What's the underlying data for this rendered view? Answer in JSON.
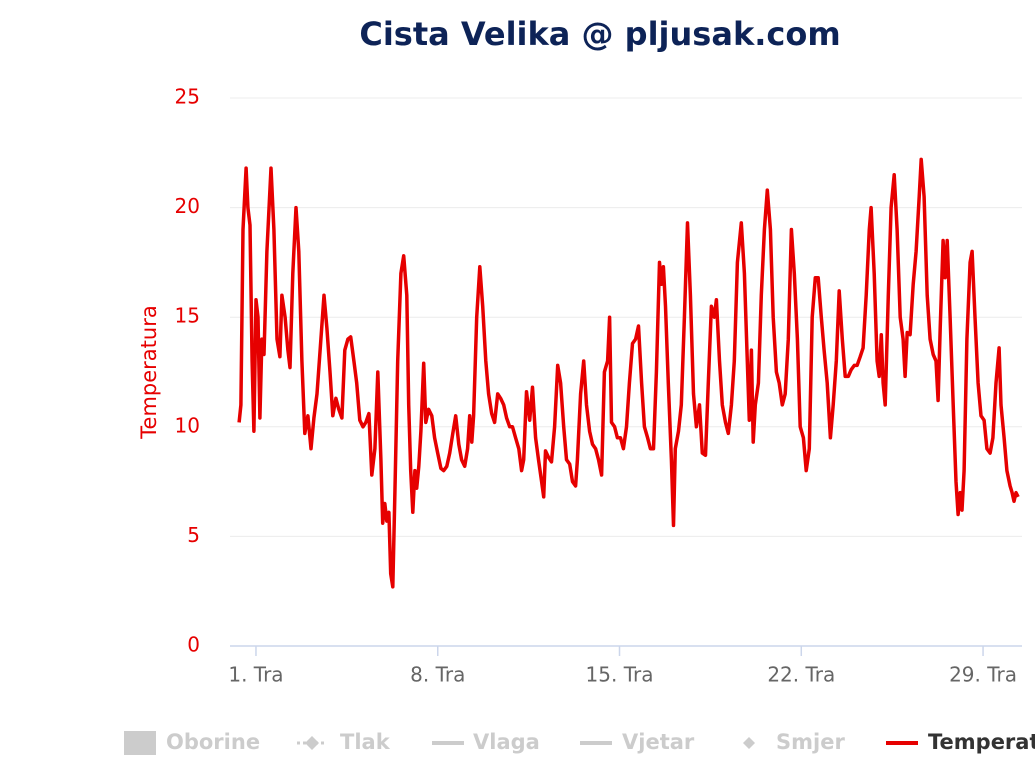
{
  "chart_data": {
    "type": "line",
    "title": "Cista Velika @ pljusak.com",
    "y_label": "Temperatura",
    "xlim": [
      0,
      30.5
    ],
    "xticks": [
      {
        "value": 1,
        "label": "1. Tra"
      },
      {
        "value": 8,
        "label": "8. Tra"
      },
      {
        "value": 15,
        "label": "15. Tra"
      },
      {
        "value": 22,
        "label": "22. Tra"
      },
      {
        "value": 29,
        "label": "29. Tra"
      }
    ],
    "ylim": [
      0,
      25
    ],
    "yticks": [
      0,
      5,
      10,
      15,
      20,
      25
    ],
    "grid": true,
    "series": [
      {
        "name": "Temperatura",
        "color": "#e60000",
        "x": [
          0.35,
          0.42,
          0.5,
          0.62,
          0.69,
          0.77,
          0.85,
          0.92,
          1.0,
          1.08,
          1.15,
          1.23,
          1.31,
          1.42,
          1.58,
          1.69,
          1.81,
          1.92,
          2.0,
          2.12,
          2.23,
          2.31,
          2.42,
          2.54,
          2.65,
          2.77,
          2.88,
          3.0,
          3.12,
          3.23,
          3.35,
          3.5,
          3.62,
          3.73,
          3.85,
          3.96,
          4.08,
          4.19,
          4.31,
          4.42,
          4.54,
          4.65,
          4.77,
          4.88,
          5.0,
          5.12,
          5.23,
          5.35,
          5.46,
          5.58,
          5.69,
          5.81,
          5.88,
          5.96,
          6.04,
          6.12,
          6.19,
          6.27,
          6.35,
          6.46,
          6.58,
          6.69,
          6.81,
          6.88,
          6.96,
          7.04,
          7.12,
          7.19,
          7.27,
          7.35,
          7.46,
          7.54,
          7.65,
          7.77,
          7.88,
          8.0,
          8.12,
          8.23,
          8.35,
          8.46,
          8.58,
          8.69,
          8.81,
          8.92,
          9.04,
          9.15,
          9.23,
          9.31,
          9.38,
          9.5,
          9.62,
          9.73,
          9.85,
          9.96,
          10.08,
          10.19,
          10.31,
          10.42,
          10.54,
          10.65,
          10.77,
          10.88,
          11.0,
          11.12,
          11.23,
          11.31,
          11.42,
          11.54,
          11.65,
          11.77,
          11.88,
          12.0,
          12.08,
          12.15,
          12.27,
          12.38,
          12.5,
          12.62,
          12.73,
          12.85,
          12.96,
          13.08,
          13.19,
          13.31,
          13.38,
          13.5,
          13.62,
          13.73,
          13.85,
          13.96,
          14.08,
          14.19,
          14.31,
          14.42,
          14.54,
          14.62,
          14.69,
          14.81,
          14.92,
          15.04,
          15.15,
          15.27,
          15.38,
          15.5,
          15.62,
          15.73,
          15.85,
          15.96,
          16.08,
          16.19,
          16.31,
          16.42,
          16.54,
          16.62,
          16.69,
          16.77,
          16.88,
          17.0,
          17.08,
          17.15,
          17.27,
          17.38,
          17.5,
          17.62,
          17.73,
          17.85,
          17.96,
          18.08,
          18.19,
          18.31,
          18.42,
          18.54,
          18.65,
          18.73,
          18.85,
          18.96,
          19.08,
          19.19,
          19.31,
          19.42,
          19.54,
          19.69,
          19.81,
          19.92,
          20.0,
          20.08,
          20.15,
          20.23,
          20.35,
          20.46,
          20.58,
          20.69,
          20.81,
          20.92,
          21.04,
          21.15,
          21.27,
          21.38,
          21.5,
          21.62,
          21.73,
          21.85,
          21.96,
          22.08,
          22.19,
          22.31,
          22.42,
          22.54,
          22.65,
          22.77,
          22.88,
          23.0,
          23.12,
          23.23,
          23.35,
          23.46,
          23.58,
          23.69,
          23.81,
          23.92,
          24.04,
          24.15,
          24.27,
          24.38,
          24.5,
          24.62,
          24.69,
          24.81,
          24.92,
          25.0,
          25.08,
          25.15,
          25.23,
          25.35,
          25.46,
          25.58,
          25.69,
          25.81,
          25.92,
          26.0,
          26.08,
          26.19,
          26.31,
          26.42,
          26.54,
          26.62,
          26.73,
          26.85,
          26.96,
          27.08,
          27.19,
          27.27,
          27.35,
          27.46,
          27.54,
          27.62,
          27.73,
          27.85,
          27.96,
          28.04,
          28.12,
          28.19,
          28.27,
          28.38,
          28.5,
          28.58,
          28.69,
          28.81,
          28.92,
          29.04,
          29.15,
          29.27,
          29.38,
          29.5,
          29.62,
          29.69,
          29.81,
          29.92,
          30.04,
          30.12,
          30.19,
          30.27,
          30.35
        ],
        "values": [
          10.2,
          11,
          19,
          21.8,
          20,
          19.2,
          13,
          9.8,
          15.8,
          15,
          10.4,
          14,
          13.3,
          18,
          21.8,
          19,
          14,
          13.2,
          16,
          15,
          13.5,
          12.7,
          17,
          20,
          18,
          13,
          9.7,
          10.5,
          9,
          10.4,
          11.5,
          14,
          16,
          14.5,
          12.5,
          10.5,
          11.3,
          10.8,
          10.4,
          13.5,
          14,
          14.1,
          13,
          12,
          10.3,
          10,
          10.2,
          10.6,
          7.8,
          9,
          12.5,
          8.5,
          5.6,
          6.5,
          5.7,
          6.1,
          3.3,
          2.7,
          7,
          13,
          17,
          17.8,
          16,
          11,
          8,
          6.1,
          8,
          7.2,
          8.2,
          9.8,
          12.9,
          10.2,
          10.8,
          10.5,
          9.5,
          8.8,
          8.1,
          8,
          8.2,
          8.8,
          9.7,
          10.5,
          9.2,
          8.5,
          8.2,
          9,
          10.5,
          9.3,
          10.5,
          15,
          17.3,
          15.5,
          13,
          11.5,
          10.6,
          10.2,
          11.5,
          11.3,
          11,
          10.4,
          10,
          10,
          9.5,
          9,
          8,
          8.5,
          11.6,
          10.3,
          11.8,
          9.5,
          8.5,
          7.5,
          6.8,
          8.9,
          8.6,
          8.4,
          10,
          12.8,
          12,
          10,
          8.5,
          8.3,
          7.5,
          7.3,
          8.5,
          11.5,
          13,
          11,
          9.8,
          9.2,
          9,
          8.5,
          7.8,
          12.5,
          13,
          15,
          10.2,
          10,
          9.5,
          9.5,
          9,
          10,
          12,
          13.8,
          14,
          14.6,
          12,
          10,
          9.5,
          9,
          9,
          12.5,
          17.5,
          16.5,
          17.3,
          15.5,
          12,
          8.5,
          5.5,
          9,
          9.8,
          11,
          15,
          19.3,
          16,
          11.5,
          10,
          11,
          8.8,
          8.7,
          12,
          15.5,
          15,
          15.8,
          13,
          11,
          10.2,
          9.7,
          11,
          13,
          17.5,
          19.3,
          17,
          13,
          10.3,
          13.5,
          9.3,
          11,
          12,
          16,
          19,
          20.8,
          19,
          15,
          12.5,
          12,
          11,
          11.5,
          14,
          19,
          17,
          14,
          10,
          9.5,
          8,
          9,
          15,
          16.8,
          16.8,
          15,
          13.5,
          12,
          9.5,
          11,
          13,
          16.2,
          14,
          12.3,
          12.3,
          12.6,
          12.8,
          12.8,
          13.2,
          13.6,
          16,
          19,
          20,
          17,
          13,
          12.3,
          14.2,
          12,
          11,
          16,
          20,
          21.5,
          19,
          15,
          14,
          12.3,
          14.3,
          14.2,
          16.5,
          18,
          20.5,
          22.2,
          20.5,
          16,
          14,
          13.3,
          13,
          11.2,
          14.5,
          18.5,
          16.8,
          18.5,
          15,
          11,
          7.5,
          6,
          7,
          6.2,
          8,
          14,
          17.5,
          18,
          15,
          12,
          10.5,
          10.3,
          9,
          8.8,
          9.5,
          12,
          13.6,
          11,
          9.5,
          8,
          7.3,
          7,
          6.6,
          7,
          6.8
        ]
      }
    ],
    "hidden_series": [
      {
        "name": "Oborine",
        "symbol": "column"
      },
      {
        "name": "Tlak",
        "symbol": "dashed-diamond"
      },
      {
        "name": "Vlaga",
        "symbol": "line"
      },
      {
        "name": "Vjetar",
        "symbol": "line"
      },
      {
        "name": "Smjer",
        "symbol": "diamond"
      }
    ]
  }
}
